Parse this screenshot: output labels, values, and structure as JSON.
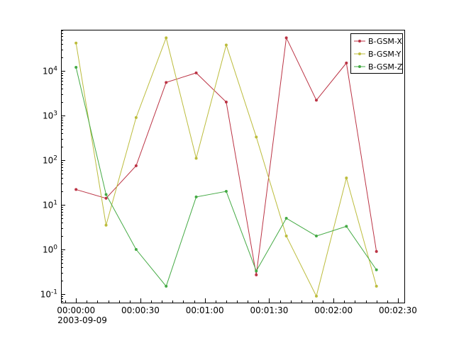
{
  "chart_data": {
    "type": "line",
    "title": "",
    "xlabel": "",
    "ylabel": "",
    "yscale": "log",
    "x_date_label": "2003-09-09",
    "x_ticks": {
      "seconds": [
        0,
        30,
        60,
        90,
        120,
        150
      ],
      "labels": [
        "00:00:00",
        "00:00:30",
        "00:01:00",
        "00:01:30",
        "00:02:00",
        "00:02:30"
      ]
    },
    "x_minor_step_seconds": 5,
    "xlim_seconds": [
      -7,
      153
    ],
    "y_base_label": "10",
    "y_tick_exponents": [
      -1,
      0,
      1,
      2,
      3,
      4
    ],
    "ylim_log10": [
      -1.19,
      4.92
    ],
    "x_seconds": [
      0,
      14,
      28,
      42,
      56,
      70,
      84,
      98,
      112,
      126,
      140
    ],
    "series": [
      {
        "name": "B-GSM-X",
        "color": "#bb3344",
        "values": [
          22,
          14,
          75,
          5500,
          9000,
          2000,
          0.27,
          55000,
          2200,
          15000,
          0.9
        ]
      },
      {
        "name": "B-GSM-Y",
        "color": "#bcbc3c",
        "values": [
          42000,
          3.5,
          900,
          55000,
          110,
          38000,
          330,
          2,
          0.09,
          40,
          0.15
        ]
      },
      {
        "name": "B-GSM-Z",
        "color": "#44aa44",
        "values": [
          12000,
          17,
          1.0,
          0.15,
          15,
          20,
          0.33,
          5,
          2,
          3.3,
          0.35
        ]
      }
    ],
    "legend": {
      "position": "top-right",
      "labels": [
        "B-GSM-X",
        "B-GSM-Y",
        "B-GSM-Z"
      ]
    }
  }
}
